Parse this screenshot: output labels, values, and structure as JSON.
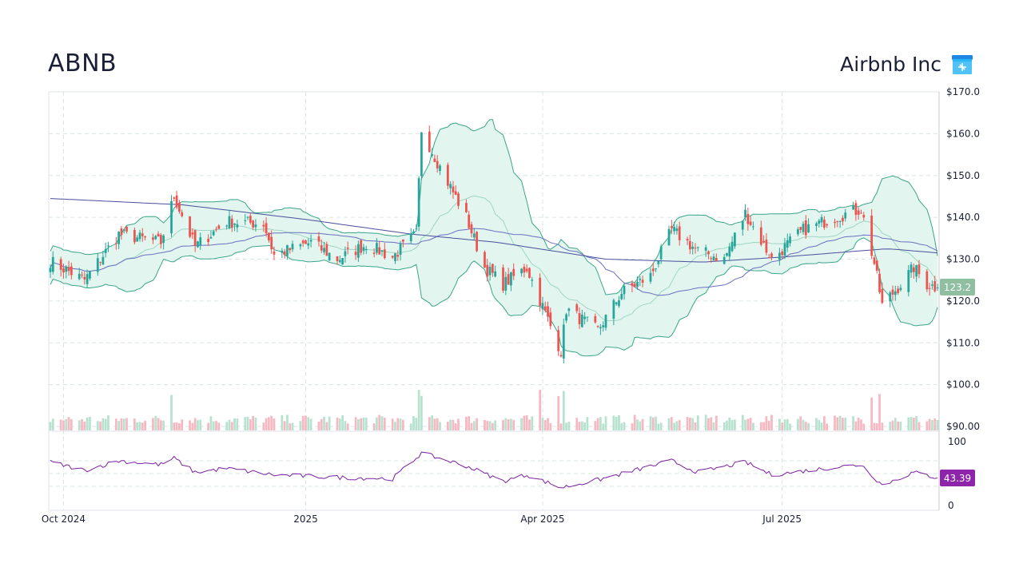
{
  "header": {
    "ticker": "ABNB",
    "company_name": "Airbnb Inc",
    "logo_icon": "airbnb-storefront-icon"
  },
  "colors": {
    "up": "#26a69a",
    "down": "#ef5350",
    "band_fill": "#e3f5ef",
    "band_line": "#3aa58a",
    "ma_short": "#9ed6c3",
    "ma_long": "#6a6fc0",
    "rsi": "#7b1fa2",
    "price_badge": "#8fbfa0",
    "rsi_badge": "#8e24aa"
  },
  "chart_data": [
    {
      "type": "candlestick",
      "title": "ABNB",
      "ylim": [
        90,
        170
      ],
      "y_ticks": [
        "$170.0",
        "$160.0",
        "$150.0",
        "$140.0",
        "$130.0",
        "$120.0",
        "$110.0",
        "$100.0",
        "$90.00"
      ],
      "x_ticks": [
        {
          "date": "2024-10-01",
          "label": "Oct 2024"
        },
        {
          "date": "2025-01-01",
          "label": "2025"
        },
        {
          "date": "2025-04-01",
          "label": "Apr 2025"
        },
        {
          "date": "2025-07-01",
          "label": "Jul 2025"
        }
      ],
      "x_range": [
        "2024-09-26",
        "2025-08-29"
      ],
      "last_price_label": "123.2",
      "close_anchors": [
        {
          "date": "2024-09-26",
          "close": 129.5
        },
        {
          "date": "2024-10-09",
          "close": 125.0
        },
        {
          "date": "2024-10-22",
          "close": 136.0
        },
        {
          "date": "2024-11-07",
          "close": 134.0
        },
        {
          "date": "2024-11-12",
          "close": 145.0
        },
        {
          "date": "2024-11-20",
          "close": 133.0
        },
        {
          "date": "2024-12-02",
          "close": 139.0
        },
        {
          "date": "2024-12-16",
          "close": 138.5
        },
        {
          "date": "2024-12-20",
          "close": 131.0
        },
        {
          "date": "2025-01-03",
          "close": 134.0
        },
        {
          "date": "2025-01-13",
          "close": 130.0
        },
        {
          "date": "2025-01-24",
          "close": 133.5
        },
        {
          "date": "2025-02-03",
          "close": 130.5
        },
        {
          "date": "2025-02-12",
          "close": 136.0
        },
        {
          "date": "2025-02-14",
          "close": 161.0
        },
        {
          "date": "2025-02-21",
          "close": 152.0
        },
        {
          "date": "2025-03-03",
          "close": 140.0
        },
        {
          "date": "2025-03-10",
          "close": 128.0
        },
        {
          "date": "2025-03-17",
          "close": 124.0
        },
        {
          "date": "2025-03-26",
          "close": 128.0
        },
        {
          "date": "2025-04-04",
          "close": 114.0
        },
        {
          "date": "2025-04-08",
          "close": 108.0
        },
        {
          "date": "2025-04-10",
          "close": 118.0
        },
        {
          "date": "2025-04-22",
          "close": 113.0
        },
        {
          "date": "2025-05-01",
          "close": 122.0
        },
        {
          "date": "2025-05-12",
          "close": 126.0
        },
        {
          "date": "2025-05-20",
          "close": 137.0
        },
        {
          "date": "2025-05-30",
          "close": 132.0
        },
        {
          "date": "2025-06-09",
          "close": 130.0
        },
        {
          "date": "2025-06-17",
          "close": 141.0
        },
        {
          "date": "2025-06-27",
          "close": 130.0
        },
        {
          "date": "2025-07-09",
          "close": 137.0
        },
        {
          "date": "2025-07-21",
          "close": 140.0
        },
        {
          "date": "2025-07-31",
          "close": 142.0
        },
        {
          "date": "2025-08-05",
          "close": 129.0
        },
        {
          "date": "2025-08-08",
          "close": 119.0
        },
        {
          "date": "2025-08-15",
          "close": 124.0
        },
        {
          "date": "2025-08-20",
          "close": 128.0
        },
        {
          "date": "2025-08-25",
          "close": 124.0
        },
        {
          "date": "2025-08-29",
          "close": 123.2
        }
      ],
      "long_ma_anchors": [
        {
          "date": "2024-09-26",
          "value": 144.5
        },
        {
          "date": "2024-11-15",
          "value": 143.0
        },
        {
          "date": "2025-01-01",
          "value": 139.5
        },
        {
          "date": "2025-02-10",
          "value": 136.0
        },
        {
          "date": "2025-03-15",
          "value": 134.0
        },
        {
          "date": "2025-04-25",
          "value": 130.0
        },
        {
          "date": "2025-06-01",
          "value": 129.3
        },
        {
          "date": "2025-07-01",
          "value": 130.5
        },
        {
          "date": "2025-08-10",
          "value": 132.5
        },
        {
          "date": "2025-08-29",
          "value": 131.5
        }
      ],
      "volume_scale_max": 100
    },
    {
      "type": "line",
      "title": "RSI",
      "ylim": [
        0,
        100
      ],
      "y_ticks": [
        "100",
        "0"
      ],
      "last_value_label": "43.39",
      "rsi_anchors": [
        {
          "date": "2024-09-26",
          "value": 68
        },
        {
          "date": "2024-10-09",
          "value": 55
        },
        {
          "date": "2024-10-22",
          "value": 70
        },
        {
          "date": "2024-11-07",
          "value": 64
        },
        {
          "date": "2024-11-12",
          "value": 74
        },
        {
          "date": "2024-11-20",
          "value": 52
        },
        {
          "date": "2024-12-02",
          "value": 58
        },
        {
          "date": "2024-12-20",
          "value": 48
        },
        {
          "date": "2025-01-13",
          "value": 44
        },
        {
          "date": "2025-02-03",
          "value": 42
        },
        {
          "date": "2025-02-14",
          "value": 82
        },
        {
          "date": "2025-03-03",
          "value": 62
        },
        {
          "date": "2025-03-17",
          "value": 38
        },
        {
          "date": "2025-03-26",
          "value": 48
        },
        {
          "date": "2025-04-08",
          "value": 28
        },
        {
          "date": "2025-04-22",
          "value": 40
        },
        {
          "date": "2025-05-20",
          "value": 70
        },
        {
          "date": "2025-05-30",
          "value": 52
        },
        {
          "date": "2025-06-17",
          "value": 68
        },
        {
          "date": "2025-06-27",
          "value": 48
        },
        {
          "date": "2025-07-21",
          "value": 60
        },
        {
          "date": "2025-07-31",
          "value": 64
        },
        {
          "date": "2025-08-08",
          "value": 32
        },
        {
          "date": "2025-08-20",
          "value": 52
        },
        {
          "date": "2025-08-29",
          "value": 43.39
        }
      ]
    }
  ]
}
